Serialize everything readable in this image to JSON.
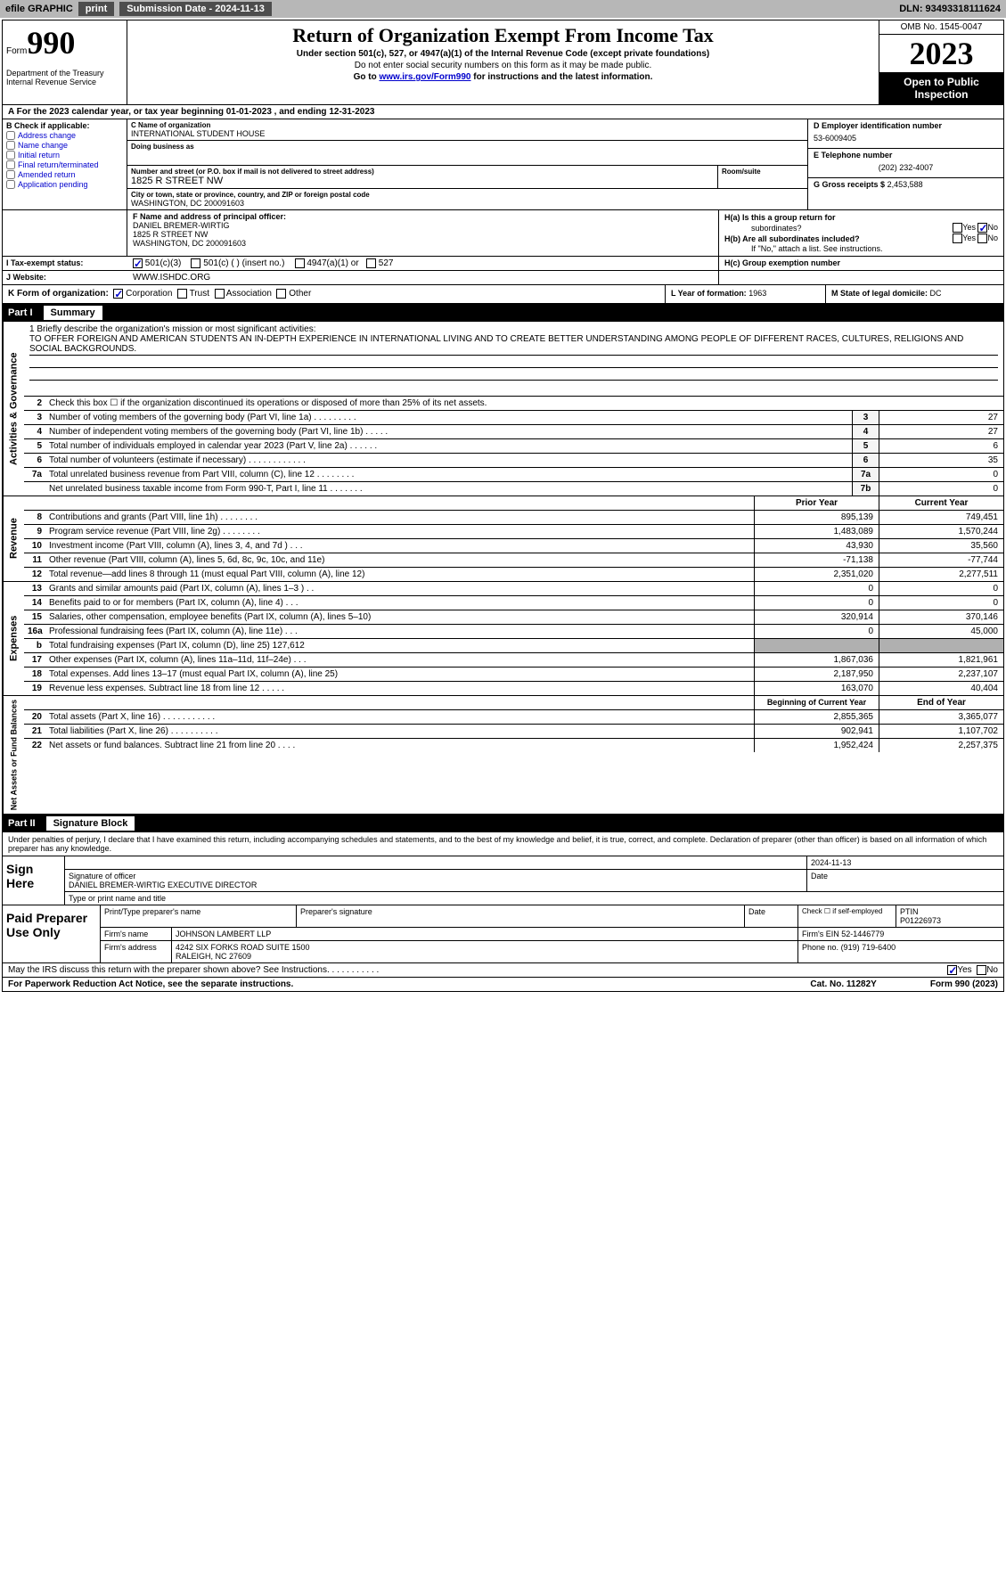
{
  "topbar": {
    "efile_label": "efile GRAPHIC",
    "print_label": "print",
    "submission_label": "Submission Date - 2024-11-13",
    "dln_label": "DLN: 93493318111624"
  },
  "header": {
    "form_label": "Form",
    "form_number": "990",
    "dept": "Department of the Treasury Internal Revenue Service",
    "title": "Return of Organization Exempt From Income Tax",
    "subtitle": "Under section 501(c), 527, or 4947(a)(1) of the Internal Revenue Code (except private foundations)",
    "note1": "Do not enter social security numbers on this form as it may be made public.",
    "note2": "Go to www.irs.gov/Form990 for instructions and the latest information.",
    "omb": "OMB No. 1545-0047",
    "year": "2023",
    "inspection": "Open to Public Inspection"
  },
  "period": "A For the 2023 calendar year, or tax year beginning 01-01-2023   , and ending 12-31-2023",
  "section_b": {
    "header": "B Check if applicable:",
    "opts": [
      "Address change",
      "Name change",
      "Initial return",
      "Final return/terminated",
      "Amended return",
      "Application pending"
    ]
  },
  "section_c": {
    "name_label": "C Name of organization",
    "name": "INTERNATIONAL STUDENT HOUSE",
    "dba_label": "Doing business as",
    "dba": "",
    "addr_label": "Number and street (or P.O. box if mail is not delivered to street address)",
    "addr": "1825 R STREET NW",
    "room_label": "Room/suite",
    "city_label": "City or town, state or province, country, and ZIP or foreign postal code",
    "city": "WASHINGTON, DC  200091603"
  },
  "section_d": {
    "ein_label": "D Employer identification number",
    "ein": "53-6009405",
    "phone_label": "E Telephone number",
    "phone": "(202) 232-4007",
    "gross_label": "G Gross receipts $",
    "gross": "2,453,588"
  },
  "officer": {
    "label": "F  Name and address of principal officer:",
    "name": "DANIEL BREMER-WIRTIG",
    "addr1": "1825 R STREET NW",
    "addr2": "WASHINGTON, DC  200091603"
  },
  "section_h": {
    "ha_label": "H(a)  Is this a group return for",
    "ha_sub": "subordinates?",
    "hb_label": "H(b)  Are all subordinates included?",
    "hb_note": "If \"No,\" attach a list. See instructions.",
    "hc_label": "H(c)  Group exemption number"
  },
  "status": {
    "label": "I   Tax-exempt status:",
    "o1": "501(c)(3)",
    "o2": "501(c) (  ) (insert no.)",
    "o3": "4947(a)(1) or",
    "o4": "527"
  },
  "website": {
    "label": "J   Website:",
    "value": "WWW.ISHDC.ORG"
  },
  "k": {
    "label": "K Form of organization:",
    "o1": "Corporation",
    "o2": "Trust",
    "o3": "Association",
    "o4": "Other"
  },
  "l": {
    "label": "L Year of formation:",
    "value": "1963"
  },
  "m": {
    "label": "M State of legal domicile:",
    "value": "DC"
  },
  "part1_label": "Part I",
  "part1_title": "Summary",
  "vtabs": {
    "gov": "Activities & Governance",
    "rev": "Revenue",
    "exp": "Expenses",
    "net": "Net Assets or Fund Balances"
  },
  "mission": {
    "label": "1   Briefly describe the organization's mission or most significant activities:",
    "text": "TO OFFER FOREIGN AND AMERICAN STUDENTS AN IN-DEPTH EXPERIENCE IN INTERNATIONAL LIVING AND TO CREATE BETTER UNDERSTANDING AMONG PEOPLE OF DIFFERENT RACES, CULTURES, RELIGIONS AND SOCIAL BACKGROUNDS."
  },
  "gov_rows": [
    {
      "n": "2",
      "text": "Check this box  ☐  if the organization discontinued its operations or disposed of more than 25% of its net assets.",
      "box": "",
      "val": ""
    },
    {
      "n": "3",
      "text": "Number of voting members of the governing body (Part VI, line 1a)   .    .    .    .    .    .    .    .    .",
      "box": "3",
      "val": "27"
    },
    {
      "n": "4",
      "text": "Number of independent voting members of the governing body (Part VI, line 1b)  .    .    .    .    .",
      "box": "4",
      "val": "27"
    },
    {
      "n": "5",
      "text": "Total number of individuals employed in calendar year 2023 (Part V, line 2a)  .    .    .    .    .    .",
      "box": "5",
      "val": "6"
    },
    {
      "n": "6",
      "text": "Total number of volunteers (estimate if necessary)   .    .    .    .    .    .    .    .    .    .    .    .",
      "box": "6",
      "val": "35"
    },
    {
      "n": "7a",
      "text": "Total unrelated business revenue from Part VIII, column (C), line 12  .    .    .    .    .    .    .    .",
      "box": "7a",
      "val": "0"
    },
    {
      "n": "",
      "text": "Net unrelated business taxable income from Form 990-T, Part I, line 11  .    .    .    .    .    .    .",
      "box": "7b",
      "val": "0"
    }
  ],
  "col_hdrs": {
    "prior": "Prior Year",
    "current": "Current Year",
    "boy": "Beginning of Current Year",
    "eoy": "End of Year"
  },
  "rev_rows": [
    {
      "n": "8",
      "text": "Contributions and grants (Part VIII, line 1h)   .    .    .    .    .    .    .    .",
      "p": "895,139",
      "c": "749,451"
    },
    {
      "n": "9",
      "text": "Program service revenue (Part VIII, line 2g)  .    .    .    .    .    .    .    .",
      "p": "1,483,089",
      "c": "1,570,244"
    },
    {
      "n": "10",
      "text": "Investment income (Part VIII, column (A), lines 3, 4, and 7d )   .    .    .",
      "p": "43,930",
      "c": "35,560"
    },
    {
      "n": "11",
      "text": "Other revenue (Part VIII, column (A), lines 5, 6d, 8c, 9c, 10c, and 11e)",
      "p": "-71,138",
      "c": "-77,744"
    },
    {
      "n": "12",
      "text": "Total revenue—add lines 8 through 11 (must equal Part VIII, column (A), line 12)",
      "p": "2,351,020",
      "c": "2,277,511"
    }
  ],
  "exp_rows": [
    {
      "n": "13",
      "text": "Grants and similar amounts paid (Part IX, column (A), lines 1–3 )  .    .",
      "p": "0",
      "c": "0"
    },
    {
      "n": "14",
      "text": "Benefits paid to or for members (Part IX, column (A), line 4)  .    .    .",
      "p": "0",
      "c": "0"
    },
    {
      "n": "15",
      "text": "Salaries, other compensation, employee benefits (Part IX, column (A), lines 5–10)",
      "p": "320,914",
      "c": "370,146"
    },
    {
      "n": "16a",
      "text": "Professional fundraising fees (Part IX, column (A), line 11e)   .    .    .",
      "p": "0",
      "c": "45,000"
    },
    {
      "n": "b",
      "text": "Total fundraising expenses (Part IX, column (D), line 25) 127,612",
      "p": "",
      "c": "",
      "shaded": true
    },
    {
      "n": "17",
      "text": "Other expenses (Part IX, column (A), lines 11a–11d, 11f–24e)  .    .    .",
      "p": "1,867,036",
      "c": "1,821,961"
    },
    {
      "n": "18",
      "text": "Total expenses. Add lines 13–17 (must equal Part IX, column (A), line 25)",
      "p": "2,187,950",
      "c": "2,237,107"
    },
    {
      "n": "19",
      "text": "Revenue less expenses. Subtract line 18 from line 12  .    .    .    .    .",
      "p": "163,070",
      "c": "40,404"
    }
  ],
  "net_rows": [
    {
      "n": "20",
      "text": "Total assets (Part X, line 16)  .    .    .    .    .    .    .    .    .    .    .",
      "p": "2,855,365",
      "c": "3,365,077"
    },
    {
      "n": "21",
      "text": "Total liabilities (Part X, line 26)  .    .    .    .    .    .    .    .    .    .",
      "p": "902,941",
      "c": "1,107,702"
    },
    {
      "n": "22",
      "text": "Net assets or fund balances. Subtract line 21 from line 20  .    .    .    .",
      "p": "1,952,424",
      "c": "2,257,375"
    }
  ],
  "part2_label": "Part II",
  "part2_title": "Signature Block",
  "sig_intro": "Under penalties of perjury, I declare that I have examined this return, including accompanying schedules and statements, and to the best of my knowledge and belief, it is true, correct, and complete. Declaration of preparer (other than officer) is based on all information of which preparer has any knowledge.",
  "sign": {
    "here": "Sign Here",
    "date": "2024-11-13",
    "sig_label": "Signature of officer",
    "officer": "DANIEL BREMER-WIRTIG  EXECUTIVE DIRECTOR",
    "type_label": "Type or print name and title",
    "date_label": "Date"
  },
  "paid": {
    "label": "Paid Preparer Use Only",
    "print_label": "Print/Type preparer's name",
    "sig_label": "Preparer's signature",
    "date_label": "Date",
    "check_label": "Check ☐ if self-employed",
    "ptin_label": "PTIN",
    "ptin": "P01226973",
    "firm_name_label": "Firm's name",
    "firm_name": "JOHNSON LAMBERT LLP",
    "firm_ein_label": "Firm's EIN",
    "firm_ein": "52-1446779",
    "firm_addr_label": "Firm's address",
    "firm_addr1": "4242 SIX FORKS ROAD SUITE 1500",
    "firm_addr2": "RALEIGH, NC  27609",
    "phone_label": "Phone no.",
    "phone": "(919) 719-6400"
  },
  "discuss": {
    "text": "May the IRS discuss this return with the preparer shown above? See Instructions.   .    .    .    .    .    .    .    .    .    .",
    "yes": "Yes",
    "no": "No"
  },
  "footer": {
    "left": "For Paperwork Reduction Act Notice, see the separate instructions.",
    "mid": "Cat. No. 11282Y",
    "right": "Form 990 (2023)"
  }
}
